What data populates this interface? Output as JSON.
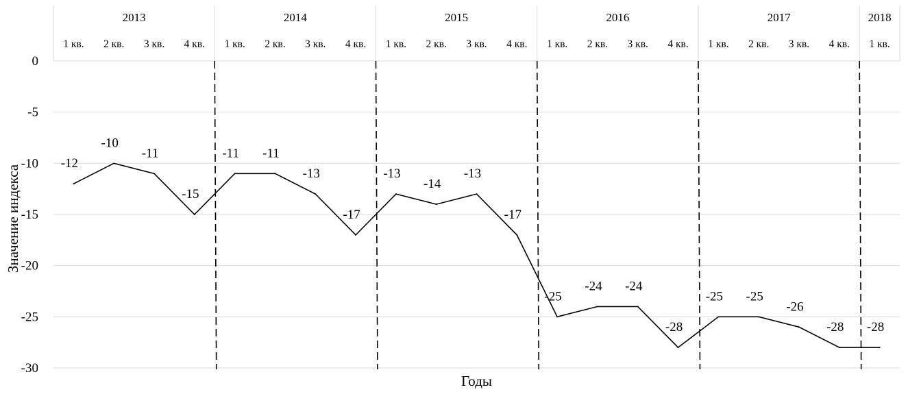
{
  "chart_data": {
    "type": "line",
    "xlabel": "Годы",
    "ylabel": "Значение индекса",
    "ylim": [
      -30,
      0
    ],
    "yticks": [
      0,
      -5,
      -10,
      -15,
      -20,
      -25,
      -30
    ],
    "grid": true,
    "legend": "none",
    "years": [
      {
        "label": "2013",
        "quarters": [
          "1 кв.",
          "2 кв.",
          "3 кв.",
          "4 кв."
        ]
      },
      {
        "label": "2014",
        "quarters": [
          "1 кв.",
          "2 кв.",
          "3 кв.",
          "4 кв."
        ]
      },
      {
        "label": "2015",
        "quarters": [
          "1 кв.",
          "2 кв.",
          "3 кв.",
          "4 кв."
        ]
      },
      {
        "label": "2016",
        "quarters": [
          "1 кв.",
          "2 кв.",
          "3 кв.",
          "4 кв."
        ]
      },
      {
        "label": "2017",
        "quarters": [
          "1 кв.",
          "2 кв.",
          "3 кв.",
          "4 кв."
        ]
      },
      {
        "label": "2018",
        "quarters": [
          "1 кв."
        ]
      }
    ],
    "values": [
      -12,
      -10,
      -11,
      -15,
      -11,
      -11,
      -13,
      -17,
      -13,
      -14,
      -13,
      -17,
      -25,
      -24,
      -24,
      -28,
      -25,
      -25,
      -26,
      -28,
      -28
    ],
    "data_labels": [
      "-12",
      "-10",
      "-11",
      "-15",
      "-11",
      "-11",
      "-13",
      "-17",
      "-13",
      "-14",
      "-13",
      "-17",
      "-25",
      "-24",
      "-24",
      "-28",
      "-25",
      "-25",
      "-26",
      "-28",
      "-28"
    ],
    "series_color": "#000000",
    "gridline_color": "#d9d9d9",
    "separator_style": "dashed"
  }
}
